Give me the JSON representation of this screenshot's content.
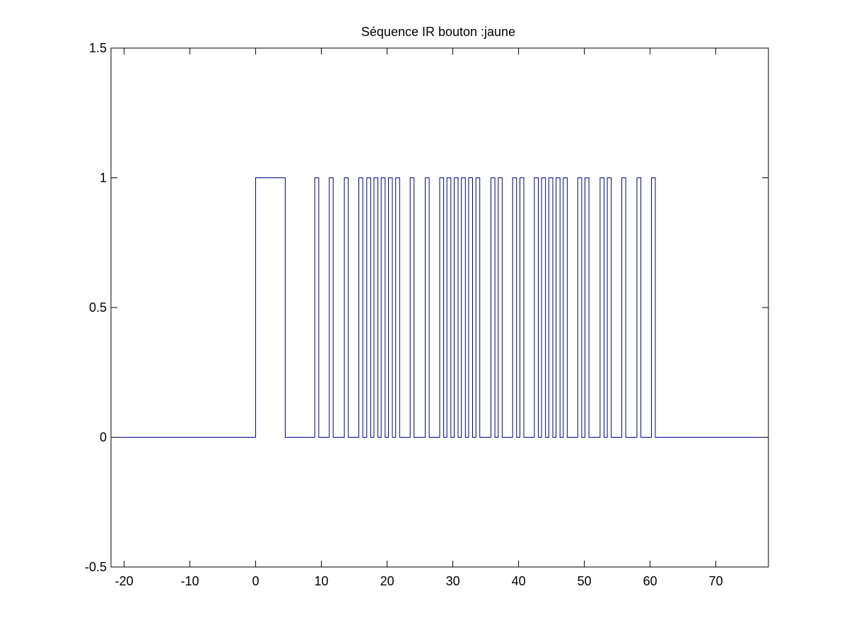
{
  "chart_data": {
    "type": "line",
    "step": true,
    "title": "Séquence IR bouton :jaune",
    "xlabel": "",
    "ylabel": "",
    "xlim": [
      -22,
      78
    ],
    "ylim": [
      -0.5,
      1.5
    ],
    "xticks": [
      -20,
      -10,
      0,
      10,
      20,
      30,
      40,
      50,
      60,
      70
    ],
    "xtick_labels": [
      "-20",
      "-10",
      "0",
      "10",
      "20",
      "30",
      "40",
      "50",
      "60",
      "70"
    ],
    "yticks": [
      -0.5,
      0,
      0.5,
      1,
      1.5
    ],
    "ytick_labels": [
      "-0.5",
      "0",
      "0.5",
      "1",
      "1.5"
    ],
    "grid": false,
    "line_color": "#00007f",
    "series": [
      {
        "pulses": [
          [
            0,
            4.5
          ],
          [
            9.0,
            9.6
          ],
          [
            11.2,
            11.8
          ],
          [
            13.5,
            14.1
          ],
          [
            15.7,
            16.3
          ],
          [
            16.9,
            17.5
          ],
          [
            18.0,
            18.6
          ],
          [
            19.1,
            19.7
          ],
          [
            20.2,
            20.8
          ],
          [
            21.3,
            21.9
          ],
          [
            23.5,
            24.1
          ],
          [
            25.8,
            26.4
          ],
          [
            28.0,
            28.6
          ],
          [
            29.1,
            29.7
          ],
          [
            30.2,
            30.8
          ],
          [
            31.3,
            31.9
          ],
          [
            32.4,
            33.0
          ],
          [
            33.5,
            34.1
          ],
          [
            35.8,
            36.4
          ],
          [
            36.9,
            37.5
          ],
          [
            39.1,
            39.7
          ],
          [
            40.2,
            40.8
          ],
          [
            42.4,
            43.0
          ],
          [
            43.5,
            44.1
          ],
          [
            44.6,
            45.2
          ],
          [
            45.7,
            46.3
          ],
          [
            46.8,
            47.4
          ],
          [
            49.0,
            49.6
          ],
          [
            50.1,
            50.7
          ],
          [
            52.4,
            53.0
          ],
          [
            53.5,
            54.1
          ],
          [
            55.7,
            56.3
          ],
          [
            58.0,
            58.6
          ],
          [
            60.2,
            60.8
          ]
        ]
      }
    ]
  }
}
